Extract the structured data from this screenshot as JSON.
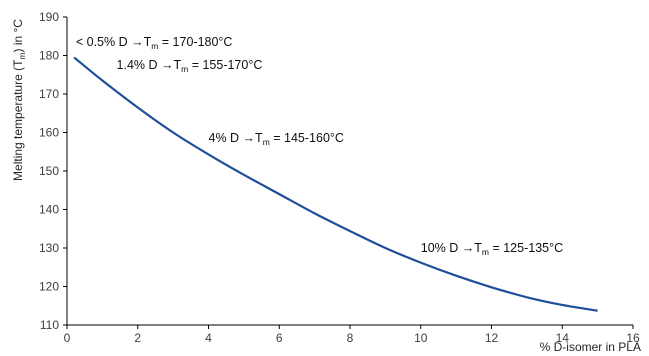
{
  "chart_data": {
    "type": "line",
    "xlabel": "% D-isomer in PLA",
    "ylabel": "Melting temperature (T",
    "ylabel_sub": "m",
    "ylabel_suffix": ") in °C",
    "xlim": [
      0,
      16
    ],
    "ylim": [
      110,
      190
    ],
    "xticks": [
      0,
      2,
      4,
      6,
      8,
      10,
      12,
      14,
      16
    ],
    "yticks": [
      110,
      120,
      130,
      140,
      150,
      160,
      170,
      180,
      190
    ],
    "grid": false,
    "line_color": "#1f4e9a",
    "series": [
      {
        "x": [
          0.2,
          1,
          2,
          3,
          4,
          5,
          6,
          7,
          8,
          9,
          10,
          11,
          12,
          13,
          14,
          15
        ],
        "y": [
          179.5,
          173.5,
          166.5,
          160.0,
          154.3,
          149.0,
          144.0,
          139.0,
          134.4,
          130.0,
          126.2,
          122.8,
          119.8,
          117.2,
          115.2,
          113.7
        ]
      }
    ],
    "annotations": [
      {
        "id": "a1",
        "x": 0.25,
        "y": 182.5,
        "pre": "< 0.5% D →T",
        "sub": "m",
        "post": " = 170-180°C"
      },
      {
        "id": "a2",
        "x": 1.4,
        "y": 176.5,
        "pre": "1.4% D →T",
        "sub": "m",
        "post": " = 155-170°C"
      },
      {
        "id": "a3",
        "x": 4.0,
        "y": 157.5,
        "pre": "4% D →T",
        "sub": "m",
        "post": " = 145-160°C"
      },
      {
        "id": "a4",
        "x": 10.0,
        "y": 129.0,
        "pre": "10% D →T",
        "sub": "m",
        "post": " = 125-135°C"
      }
    ]
  }
}
